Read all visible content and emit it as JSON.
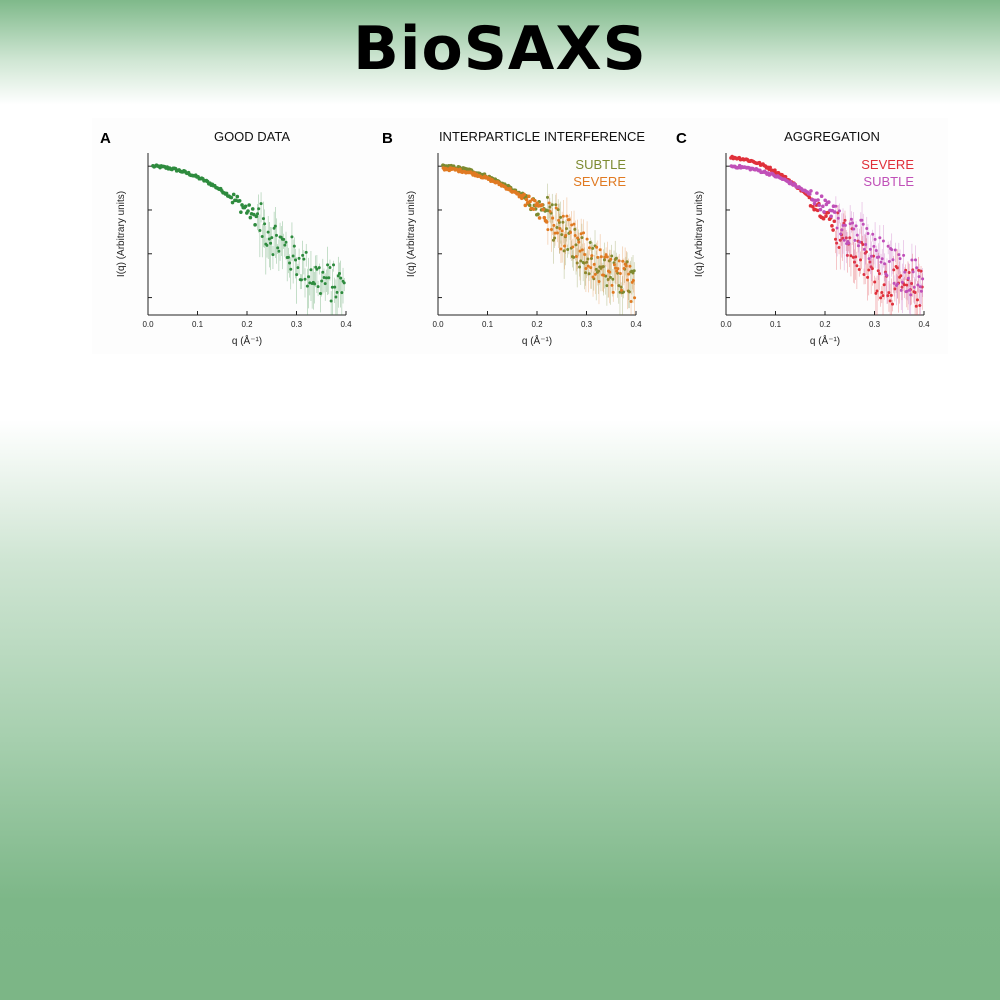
{
  "page": {
    "title": "BioSAXS"
  },
  "colors": {
    "good": "#2e8b3e",
    "subtle_b": "#7c8a30",
    "severe_b": "#e07a22",
    "severe_c": "#e0303a",
    "subtle_c": "#c050b8"
  },
  "chart_data": [
    {
      "type": "scatter",
      "panel": "A",
      "title": "GOOD DATA",
      "xlabel": "q (Å⁻¹)",
      "ylabel": "I(q) (Arbitrary units)",
      "xlim": [
        0,
        0.4
      ],
      "xticks": [
        "0.0",
        "0.1",
        "0.2",
        "0.3",
        "0.4"
      ],
      "yscale": "log",
      "series": [
        {
          "name": "",
          "color": "#2e8b3e",
          "i0": 1.0,
          "rg": 13.2,
          "noise_level": 0.0018
        }
      ]
    },
    {
      "type": "scatter",
      "panel": "B",
      "title": "INTERPARTICLE INTERFERENCE",
      "xlabel": "q (Å⁻¹)",
      "ylabel": "I(q) (Arbitrary units)",
      "xlim": [
        0,
        0.4
      ],
      "xticks": [
        "0.0",
        "0.1",
        "0.2",
        "0.3",
        "0.4"
      ],
      "yscale": "log",
      "legend": "top-right",
      "series": [
        {
          "name": "SUBTLE",
          "color": "#7c8a30",
          "i0": 1.0,
          "rg": 12.8,
          "noise_level": 0.0022
        },
        {
          "name": "SEVERE",
          "color": "#e07a22",
          "i0": 0.88,
          "rg": 12.6,
          "noise_level": 0.002
        }
      ]
    },
    {
      "type": "scatter",
      "panel": "C",
      "title": "AGGREGATION",
      "xlabel": "q (Å⁻¹)",
      "ylabel": "I(q) (Arbitrary units)",
      "xlim": [
        0,
        0.4
      ],
      "xticks": [
        "0.0",
        "0.1",
        "0.2",
        "0.3",
        "0.4"
      ],
      "yscale": "log",
      "legend": "top-right",
      "series": [
        {
          "name": "SEVERE",
          "color": "#e0303a",
          "i0": 1.6,
          "rg": 15.0,
          "noise_level": 0.0016
        },
        {
          "name": "SUBTLE",
          "color": "#c050b8",
          "i0": 1.0,
          "rg": 12.5,
          "noise_level": 0.0024
        }
      ]
    }
  ]
}
